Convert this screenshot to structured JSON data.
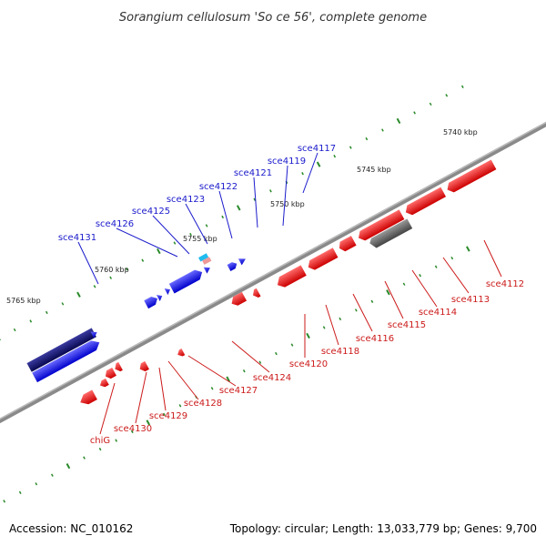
{
  "title": "Sorangium cellulosum 'So ce 56', complete genome",
  "footer": {
    "accession": "Accession: NC_010162",
    "summary": "Topology: circular; Length: 13,033,779 bp; Genes: 9,700"
  },
  "scale_labels": [
    "5740 kbp",
    "5745 kbp",
    "5750 kbp",
    "5755 kbp",
    "5760 kbp",
    "5765 kbp"
  ],
  "top_strand_genes": [
    "sce4117",
    "sce4119",
    "sce4121",
    "sce4122",
    "sce4123",
    "sce4125",
    "sce4126",
    "sce4131"
  ],
  "bottom_strand_genes": [
    "sce4112",
    "sce4113",
    "sce4114",
    "sce4115",
    "sce4116",
    "sce4118",
    "sce4120",
    "sce4124",
    "sce4127",
    "sce4128",
    "sce4129",
    "sce4130",
    "chiG"
  ],
  "colors": {
    "forward": "#1a1aee",
    "reverse": "#ee1a1a",
    "dark_blue": "#101070",
    "grey_gene": "#666666",
    "backbone": "#888888",
    "tick_green": "#2a8a2a",
    "rna_top": "#22bbee",
    "rna_bottom": "#ee9999"
  }
}
